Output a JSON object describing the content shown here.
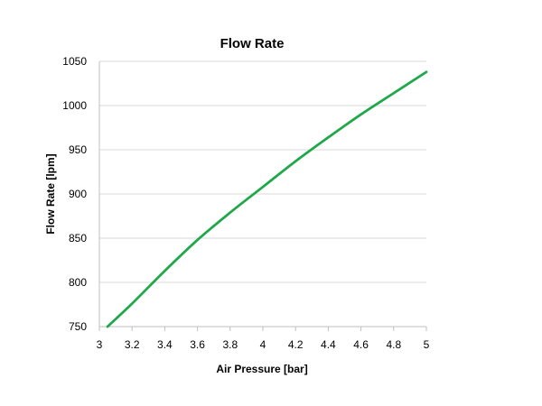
{
  "chart_data": {
    "type": "line",
    "title": "Flow Rate",
    "xlabel": "Air Pressure [bar]",
    "ylabel": "Flow Rate [lpm]",
    "xlim": [
      3,
      5
    ],
    "ylim": [
      750,
      1050
    ],
    "xticks": [
      "3",
      "3.2",
      "3.4",
      "3.6",
      "3.8",
      "4",
      "4.2",
      "4.4",
      "4.6",
      "4.8",
      "5"
    ],
    "yticks": [
      "750",
      "800",
      "850",
      "900",
      "950",
      "1000",
      "1050"
    ],
    "grid": "horizontal",
    "legend": "none",
    "series": [
      {
        "color": "#1ea84a",
        "x": [
          3.05,
          3.2,
          3.4,
          3.6,
          3.8,
          4.0,
          4.2,
          4.4,
          4.6,
          4.8,
          5.0
        ],
        "y": [
          750,
          776,
          813,
          848,
          879,
          908,
          937,
          964,
          990,
          1014,
          1038
        ]
      }
    ]
  }
}
